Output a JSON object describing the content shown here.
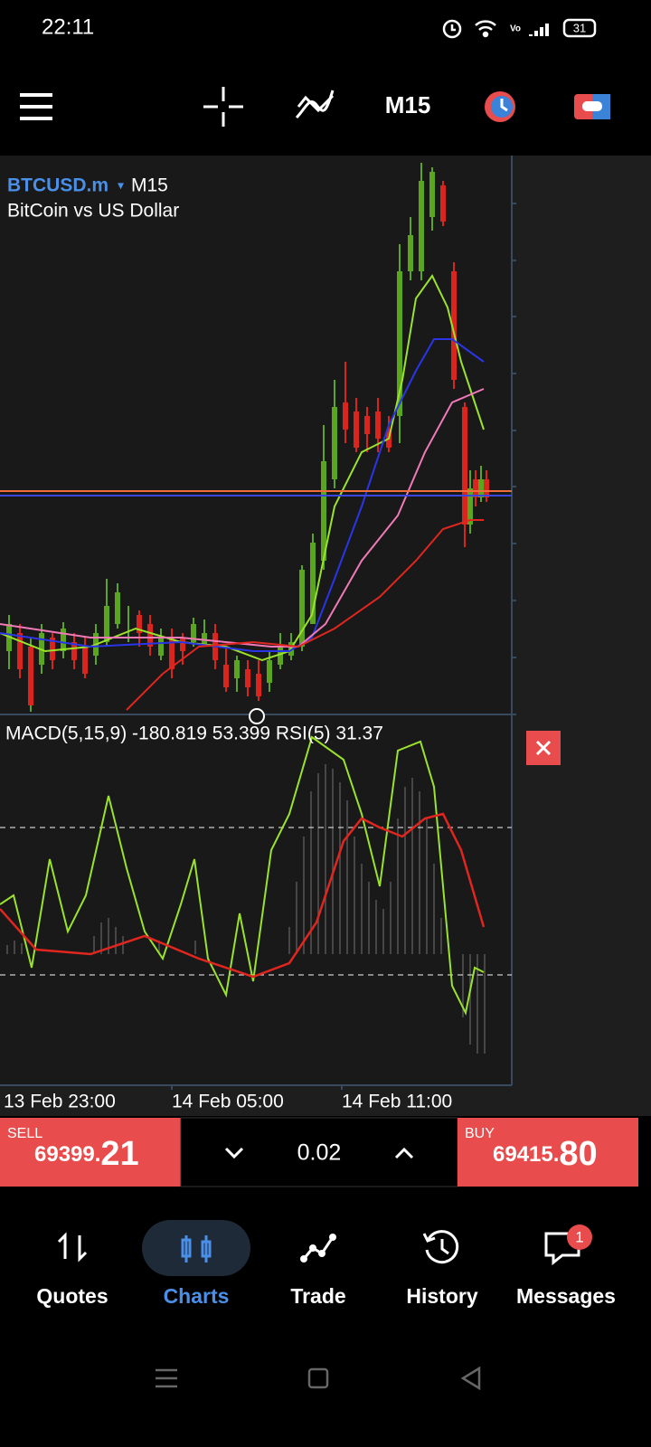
{
  "status_bar": {
    "time": "22:11",
    "battery": "31"
  },
  "toolbar": {
    "timeframe": "M15"
  },
  "chart": {
    "symbol": "BTCUSD.m",
    "timeframe": "M15",
    "description": "BitCoin vs US Dollar",
    "indicator_label": "MACD(5,15,9) -180.819 53.399 RSI(5) 31.37",
    "time_labels": [
      "13 Feb 23:00",
      "14 Feb 05:00",
      "14 Feb 11:00"
    ]
  },
  "trade_bar": {
    "sell_label": "SELL",
    "sell_price_main": "69399.",
    "sell_price_tail": "21",
    "volume": "0.02",
    "buy_label": "BUY",
    "buy_price_main": "69415.",
    "buy_price_tail": "80"
  },
  "nav": {
    "items": [
      "Quotes",
      "Charts",
      "Trade",
      "History",
      "Messages"
    ],
    "messages_badge": "1"
  }
}
